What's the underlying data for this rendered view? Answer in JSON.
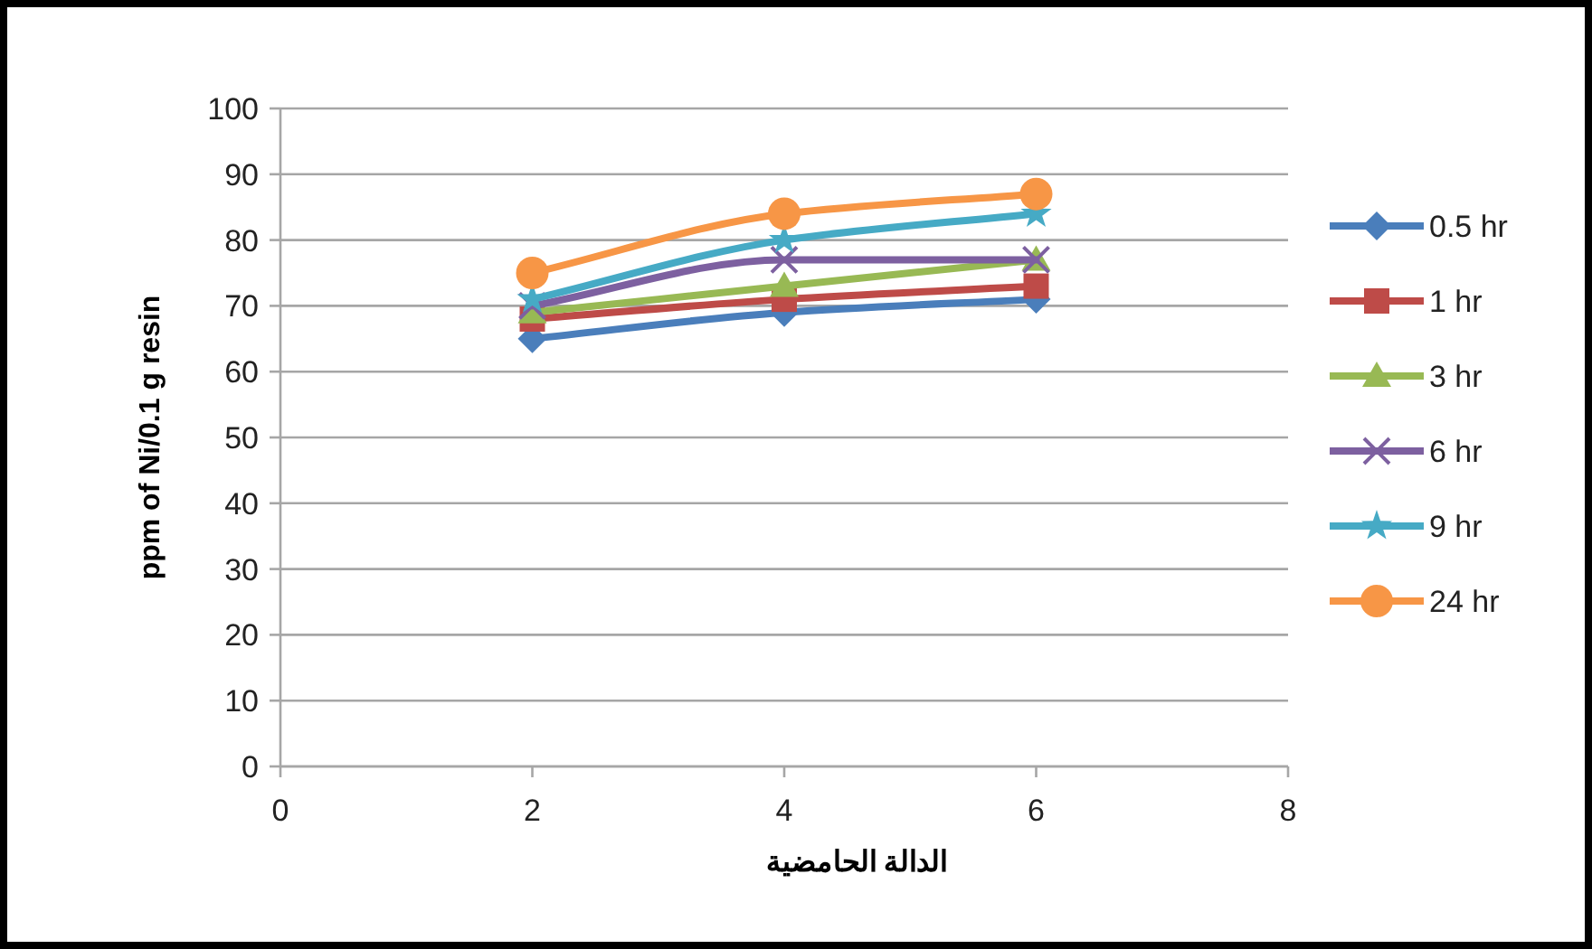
{
  "chart_data": {
    "type": "line",
    "xlabel": "الدالة الحامضية",
    "ylabel": "ppm of Ni/0.1 g resin",
    "x": [
      2,
      4,
      6
    ],
    "xlim": [
      0,
      8
    ],
    "xticks": [
      0,
      2,
      4,
      6,
      8
    ],
    "ylim": [
      0,
      100
    ],
    "yticks": [
      0,
      10,
      20,
      30,
      40,
      50,
      60,
      70,
      80,
      90,
      100
    ],
    "grid": "y",
    "legend": "right",
    "line_style": "solid",
    "series": [
      {
        "name": "0.5 hr",
        "color": "#4a7ebb",
        "marker": "diamond",
        "values": [
          65,
          69,
          71
        ]
      },
      {
        "name": "1 hr",
        "color": "#be4b48",
        "marker": "square",
        "values": [
          68,
          71,
          73
        ]
      },
      {
        "name": "3 hr",
        "color": "#98b954",
        "marker": "triangle",
        "values": [
          69,
          73,
          77
        ]
      },
      {
        "name": "6 hr",
        "color": "#7d60a0",
        "marker": "cross",
        "values": [
          70,
          77,
          77
        ]
      },
      {
        "name": "9 hr",
        "color": "#46aac5",
        "marker": "star",
        "values": [
          71,
          80,
          84
        ]
      },
      {
        "name": "24 hr",
        "color": "#f79646",
        "marker": "circle",
        "values": [
          75,
          84,
          87
        ]
      }
    ]
  }
}
